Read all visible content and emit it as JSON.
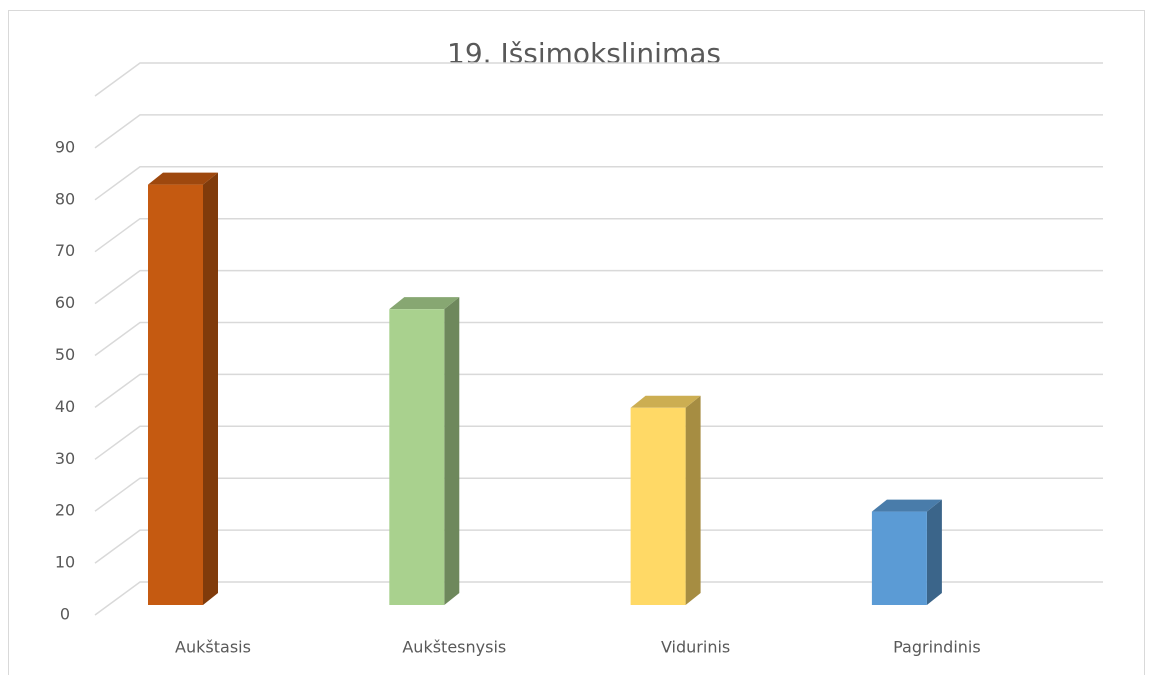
{
  "chart_data": {
    "type": "bar3d",
    "title": "19. Išsimokslinimas",
    "categories": [
      "Aukštasis",
      "Aukštesnysis",
      "Vidurinis",
      "Pagrindinis"
    ],
    "values": [
      81,
      57,
      38,
      18
    ],
    "colors": [
      "#c55a11",
      "#a9d18e",
      "#ffd966",
      "#5b9bd5"
    ],
    "ylim": [
      0,
      100
    ],
    "yticks": [
      0,
      10,
      20,
      30,
      40,
      50,
      60,
      70,
      80,
      90
    ],
    "grid": true
  }
}
